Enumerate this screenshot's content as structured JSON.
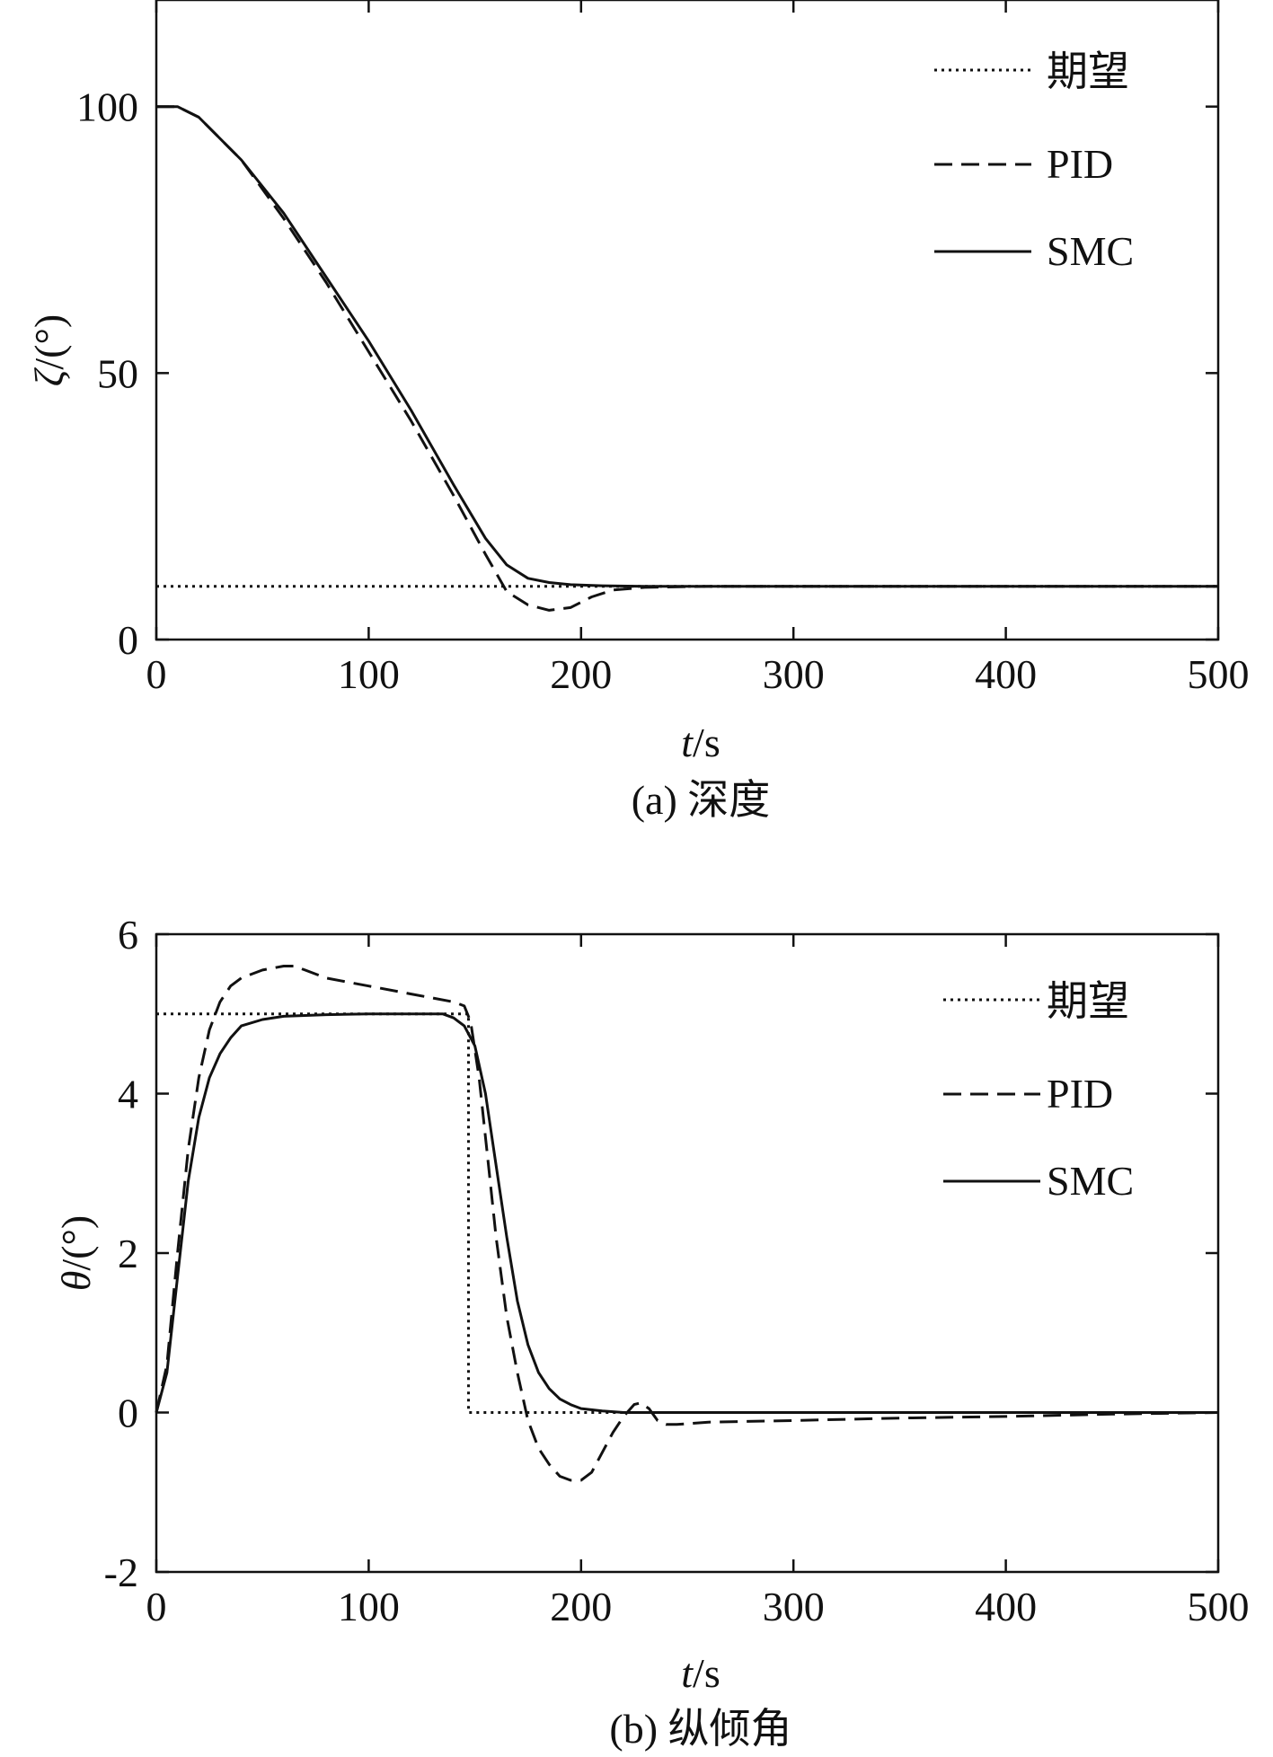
{
  "chart_data": [
    {
      "type": "line",
      "caption": "(a) 深度",
      "xlabel_italic": "t",
      "xlabel_unit": "/s",
      "ylabel_italic": "ζ",
      "ylabel_unit": "/(°)",
      "xlim": [
        0,
        500
      ],
      "ylim": [
        0,
        120
      ],
      "xticks": [
        0,
        100,
        200,
        300,
        400,
        500
      ],
      "xtick_labels": [
        "0",
        "100",
        "200",
        "300",
        "400",
        "500"
      ],
      "yticks": [
        0,
        50,
        100
      ],
      "ytick_labels": [
        "0",
        "50",
        "100"
      ],
      "grid": false,
      "legend_position": "top-right",
      "series": [
        {
          "name": "期望",
          "style": "dotted",
          "x": [
            0,
            500
          ],
          "y": [
            10,
            10
          ]
        },
        {
          "name": "PID",
          "style": "dashed",
          "x": [
            0,
            10,
            20,
            40,
            60,
            80,
            100,
            120,
            140,
            155,
            165,
            175,
            185,
            195,
            205,
            215,
            230,
            260,
            300,
            400,
            500
          ],
          "y": [
            100,
            100,
            98,
            90,
            79,
            67,
            54,
            41,
            27,
            16,
            9,
            6.5,
            5.5,
            6,
            8,
            9.3,
            9.8,
            10,
            10,
            10,
            10
          ]
        },
        {
          "name": "SMC",
          "style": "solid",
          "x": [
            0,
            10,
            20,
            40,
            60,
            80,
            100,
            120,
            140,
            155,
            165,
            175,
            185,
            195,
            210,
            230,
            260,
            300,
            400,
            500
          ],
          "y": [
            100,
            100,
            98,
            90,
            80,
            68,
            56,
            43,
            29,
            19,
            14,
            11.5,
            10.7,
            10.3,
            10.1,
            10,
            10,
            10,
            10,
            10
          ]
        }
      ]
    },
    {
      "type": "line",
      "caption": "(b) 纵倾角",
      "xlabel_italic": "t",
      "xlabel_unit": "/s",
      "ylabel_italic": "θ",
      "ylabel_unit": "/(°)",
      "xlim": [
        0,
        500
      ],
      "ylim": [
        -2,
        6
      ],
      "xticks": [
        0,
        100,
        200,
        300,
        400,
        500
      ],
      "xtick_labels": [
        "0",
        "100",
        "200",
        "300",
        "400",
        "500"
      ],
      "yticks": [
        -2,
        0,
        2,
        4,
        6
      ],
      "ytick_labels": [
        "-2",
        "0",
        "2",
        "4",
        "6"
      ],
      "grid": false,
      "legend_position": "top-right",
      "series": [
        {
          "name": "期望",
          "style": "dotted",
          "x": [
            0,
            147,
            147,
            500
          ],
          "y": [
            5,
            5,
            0,
            0
          ]
        },
        {
          "name": "PID",
          "style": "dashed",
          "x": [
            0,
            5,
            10,
            15,
            20,
            25,
            30,
            35,
            40,
            50,
            60,
            65,
            70,
            80,
            100,
            120,
            140,
            145,
            148,
            152,
            156,
            160,
            165,
            170,
            175,
            180,
            185,
            190,
            195,
            200,
            205,
            210,
            215,
            220,
            225,
            228,
            232,
            236,
            240,
            245,
            260,
            300,
            350,
            400,
            450,
            500
          ],
          "y": [
            0,
            0.6,
            2.0,
            3.3,
            4.2,
            4.8,
            5.15,
            5.35,
            5.45,
            5.55,
            5.6,
            5.6,
            5.55,
            5.45,
            5.35,
            5.25,
            5.15,
            5.1,
            4.9,
            4.2,
            3.2,
            2.2,
            1.2,
            0.5,
            -0.1,
            -0.45,
            -0.65,
            -0.8,
            -0.85,
            -0.85,
            -0.75,
            -0.5,
            -0.25,
            -0.05,
            0.1,
            0.12,
            0.05,
            -0.1,
            -0.15,
            -0.15,
            -0.12,
            -0.1,
            -0.07,
            -0.05,
            -0.02,
            0
          ]
        },
        {
          "name": "SMC",
          "style": "solid",
          "x": [
            0,
            5,
            10,
            15,
            20,
            25,
            30,
            35,
            40,
            50,
            60,
            70,
            80,
            100,
            120,
            135,
            140,
            145,
            150,
            155,
            160,
            165,
            170,
            175,
            180,
            185,
            190,
            195,
            200,
            210,
            220,
            240,
            300,
            400,
            500
          ],
          "y": [
            0,
            0.5,
            1.7,
            2.9,
            3.7,
            4.2,
            4.5,
            4.7,
            4.85,
            4.93,
            4.97,
            4.98,
            4.99,
            5.0,
            5.0,
            5.0,
            4.95,
            4.85,
            4.6,
            4.0,
            3.1,
            2.2,
            1.4,
            0.85,
            0.5,
            0.3,
            0.17,
            0.1,
            0.05,
            0.02,
            0,
            0,
            0,
            0,
            0
          ]
        }
      ]
    }
  ]
}
